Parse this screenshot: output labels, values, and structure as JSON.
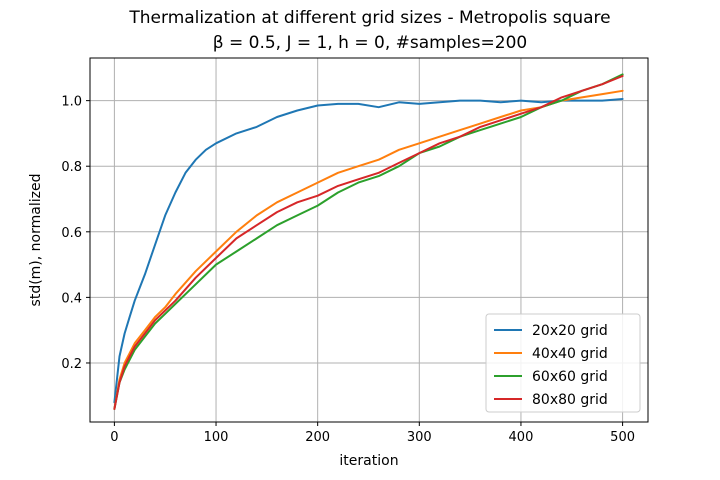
{
  "chart_data": {
    "type": "line",
    "title": "Thermalization at different grid sizes - Metropolis square",
    "subtitle": "β = 0.5, J = 1, h = 0, #samples=200",
    "xlabel": "iteration",
    "ylabel": "std(m), normalized",
    "xlim": [
      -24,
      525
    ],
    "ylim": [
      0.02,
      1.13
    ],
    "xticks": [
      0,
      100,
      200,
      300,
      400,
      500
    ],
    "yticks": [
      0.2,
      0.4,
      0.6,
      0.8,
      1.0
    ],
    "xtick_labels": [
      "0",
      "100",
      "200",
      "300",
      "400",
      "500"
    ],
    "ytick_labels": [
      "0.2",
      "0.4",
      "0.6",
      "0.8",
      "1.0"
    ],
    "grid": true,
    "legend_position": "lower-right",
    "series": [
      {
        "name": "20x20 grid",
        "color": "#1f77b4",
        "x": [
          0,
          5,
          10,
          15,
          20,
          25,
          30,
          40,
          50,
          60,
          70,
          80,
          90,
          100,
          120,
          140,
          160,
          180,
          200,
          220,
          240,
          260,
          280,
          300,
          320,
          340,
          360,
          380,
          400,
          420,
          440,
          460,
          480,
          500
        ],
        "y": [
          0.08,
          0.22,
          0.29,
          0.34,
          0.39,
          0.43,
          0.47,
          0.56,
          0.65,
          0.72,
          0.78,
          0.82,
          0.85,
          0.87,
          0.9,
          0.92,
          0.95,
          0.97,
          0.985,
          0.99,
          0.99,
          0.98,
          0.995,
          0.99,
          0.995,
          1.0,
          1.0,
          0.995,
          1.0,
          0.995,
          1.0,
          1.0,
          1.0,
          1.005
        ]
      },
      {
        "name": "40x40 grid",
        "color": "#ff7f0e",
        "x": [
          0,
          5,
          10,
          20,
          30,
          40,
          50,
          60,
          80,
          100,
          120,
          140,
          160,
          180,
          200,
          220,
          240,
          260,
          280,
          300,
          320,
          340,
          360,
          380,
          400,
          420,
          440,
          460,
          480,
          500
        ],
        "y": [
          0.06,
          0.15,
          0.2,
          0.26,
          0.3,
          0.34,
          0.37,
          0.41,
          0.48,
          0.54,
          0.6,
          0.65,
          0.69,
          0.72,
          0.75,
          0.78,
          0.8,
          0.82,
          0.85,
          0.87,
          0.89,
          0.91,
          0.93,
          0.95,
          0.97,
          0.98,
          1.0,
          1.01,
          1.02,
          1.03
        ]
      },
      {
        "name": "60x60 grid",
        "color": "#2ca02c",
        "x": [
          0,
          5,
          10,
          20,
          30,
          40,
          50,
          60,
          80,
          100,
          120,
          140,
          160,
          180,
          200,
          220,
          240,
          260,
          280,
          300,
          320,
          340,
          360,
          380,
          400,
          420,
          440,
          460,
          480,
          500
        ],
        "y": [
          0.06,
          0.14,
          0.18,
          0.24,
          0.28,
          0.32,
          0.35,
          0.38,
          0.44,
          0.5,
          0.54,
          0.58,
          0.62,
          0.65,
          0.68,
          0.72,
          0.75,
          0.77,
          0.8,
          0.84,
          0.86,
          0.89,
          0.91,
          0.93,
          0.95,
          0.98,
          1.0,
          1.03,
          1.05,
          1.08
        ]
      },
      {
        "name": "80x80 grid",
        "color": "#d62728",
        "x": [
          0,
          5,
          10,
          20,
          30,
          40,
          50,
          60,
          80,
          100,
          120,
          140,
          160,
          180,
          200,
          220,
          240,
          260,
          280,
          300,
          320,
          340,
          360,
          380,
          400,
          420,
          440,
          460,
          480,
          500
        ],
        "y": [
          0.06,
          0.14,
          0.19,
          0.25,
          0.29,
          0.33,
          0.36,
          0.39,
          0.46,
          0.52,
          0.58,
          0.62,
          0.66,
          0.69,
          0.71,
          0.74,
          0.76,
          0.78,
          0.81,
          0.84,
          0.87,
          0.89,
          0.92,
          0.94,
          0.96,
          0.98,
          1.01,
          1.03,
          1.05,
          1.075
        ]
      }
    ]
  }
}
